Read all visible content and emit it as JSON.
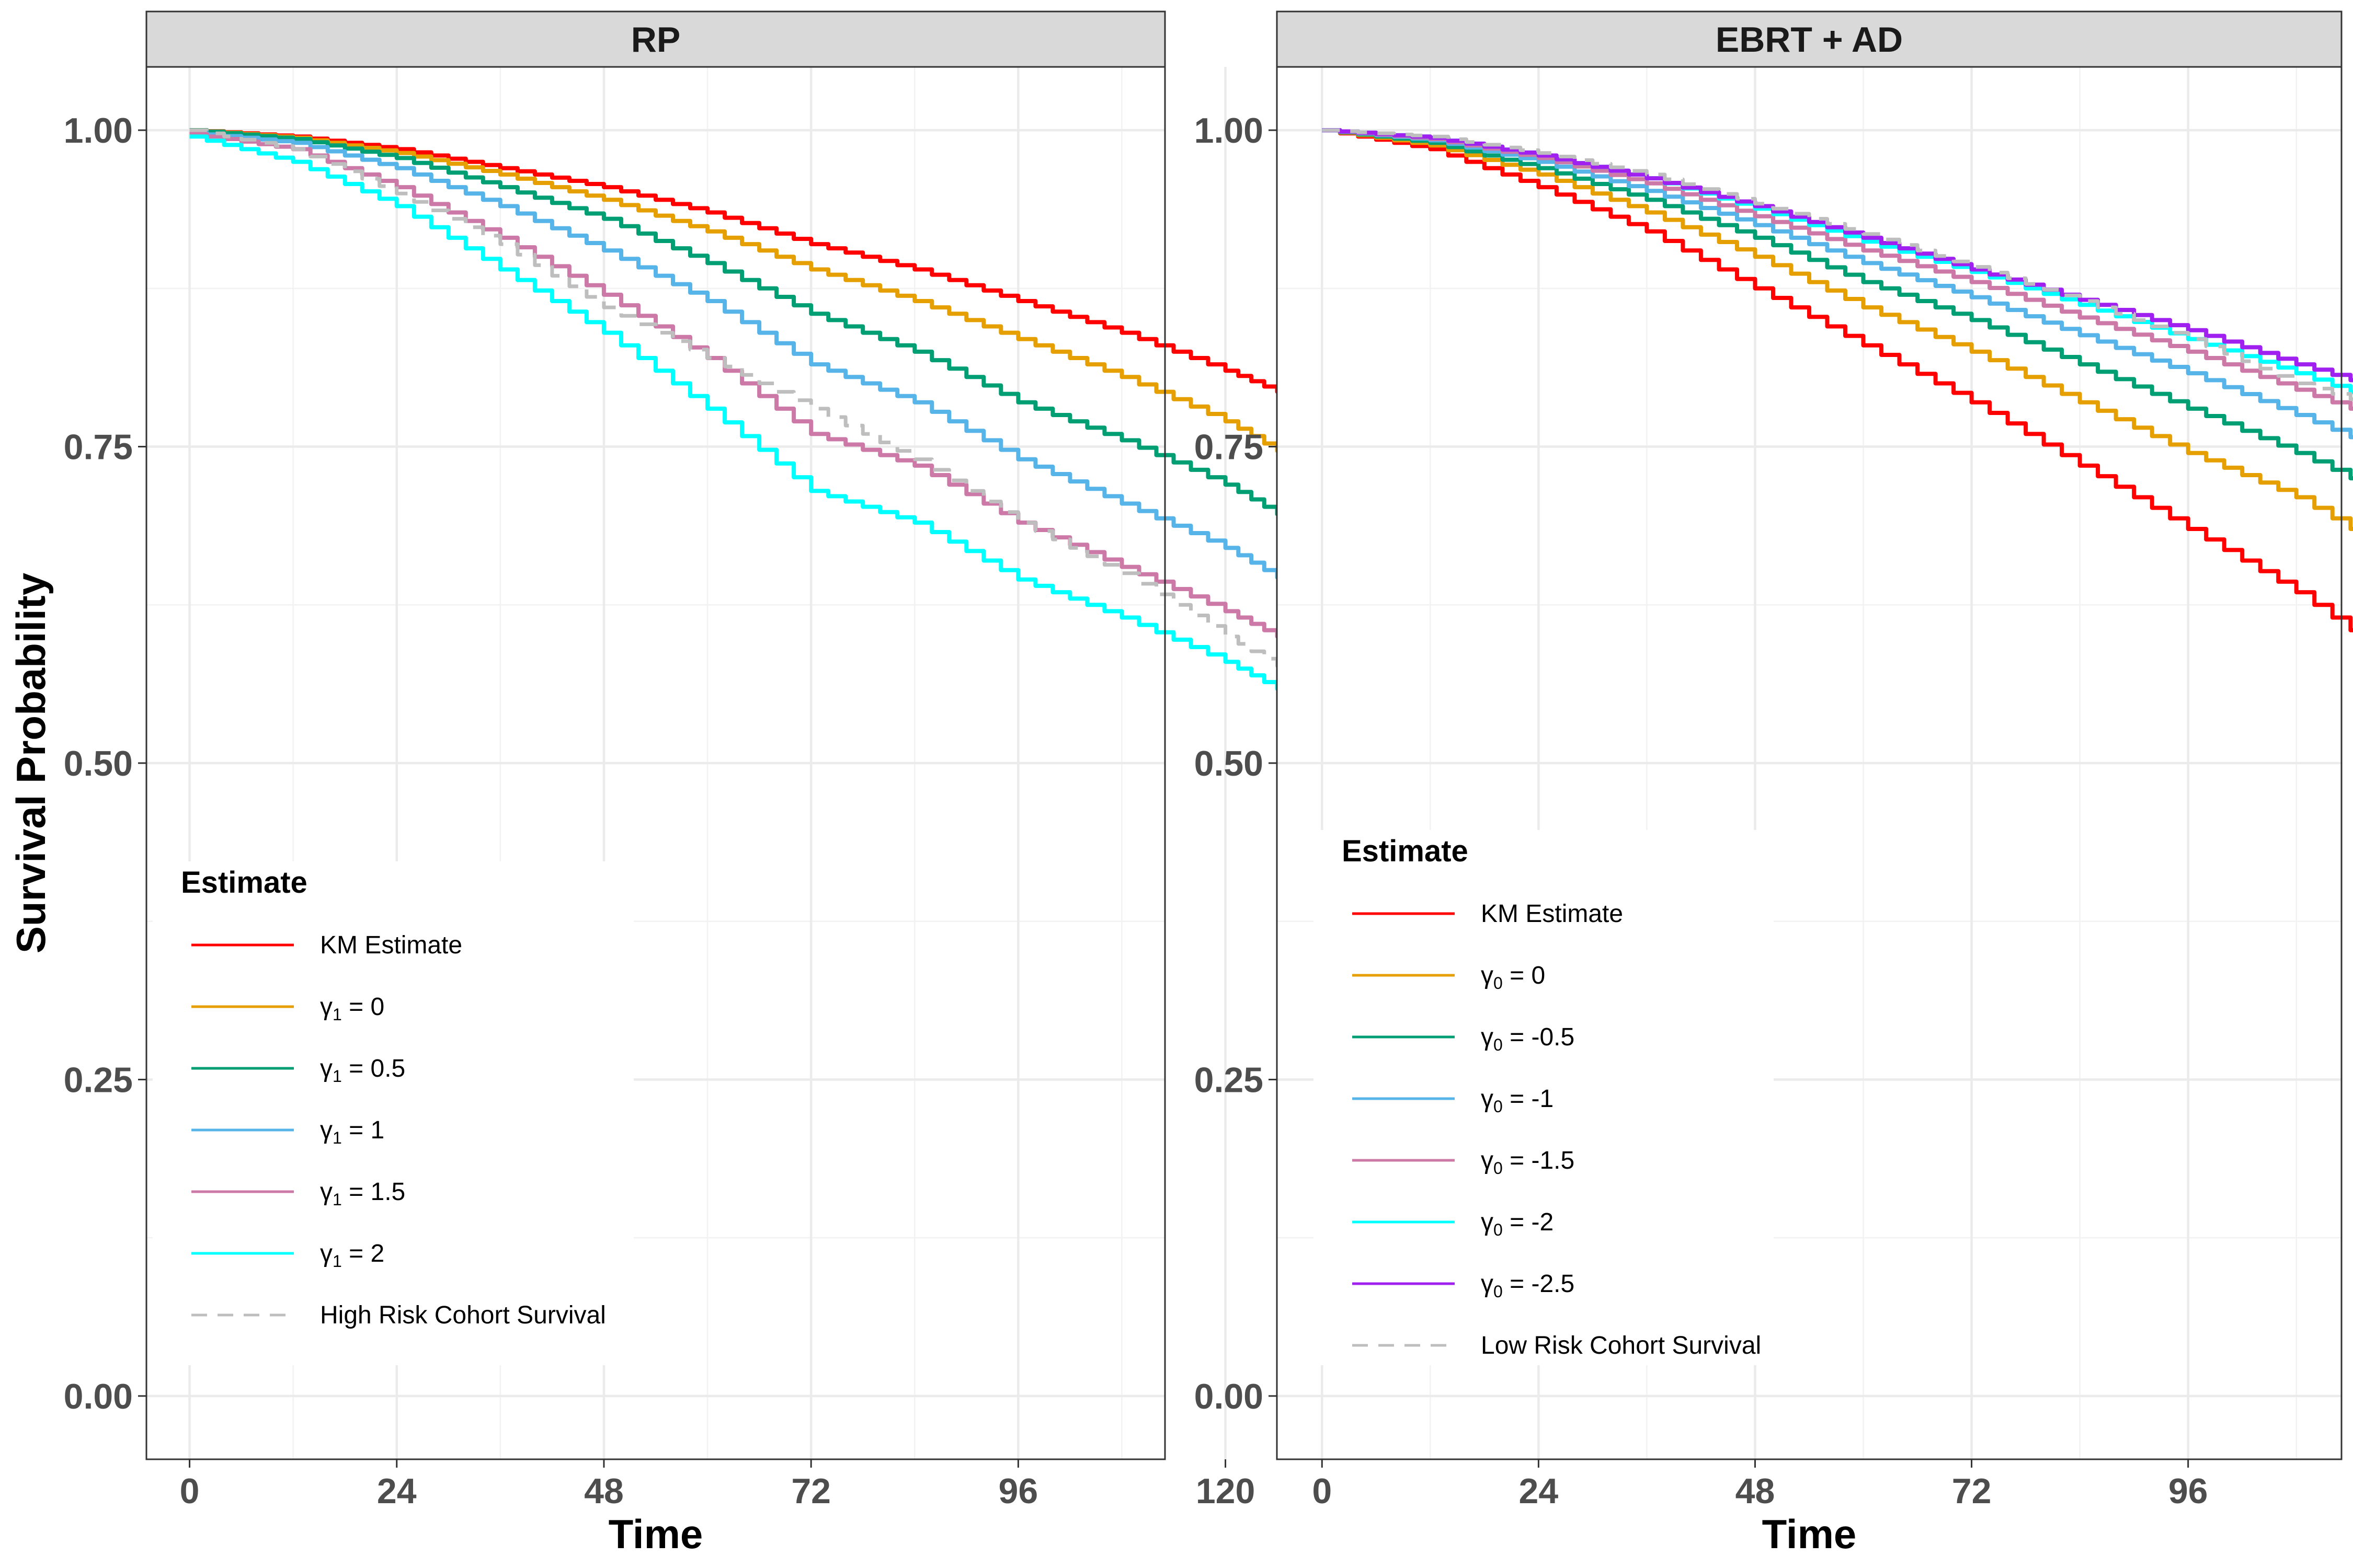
{
  "chart_data": [
    {
      "type": "line",
      "title": "RP",
      "xlabel": "Time",
      "ylabel": "Survival Probability",
      "xlim": [
        -5,
        113
      ],
      "ylim": [
        -0.05,
        1.05
      ],
      "x_ticks": [
        0,
        24,
        48,
        72,
        96,
        120
      ],
      "y_ticks": [
        0,
        0.25,
        0.5,
        0.75,
        1
      ],
      "x_tick_labels": [
        "0",
        "24",
        "48",
        "72",
        "96",
        "120"
      ],
      "y_tick_labels": [
        "0.00",
        "0.25",
        "0.50",
        "0.75",
        "1.00"
      ],
      "grid": true,
      "legend": {
        "title": "Estimate",
        "placement": "bottom-left",
        "entries": [
          {
            "label": "KM Estimate",
            "color": "#FF0000",
            "dash": "solid"
          },
          {
            "label": "γ1 = 0",
            "symbol": "γ",
            "sub": "1",
            "rest": " = 0",
            "color": "#E69F00",
            "dash": "solid"
          },
          {
            "label": "γ1 = 0.5",
            "symbol": "γ",
            "sub": "1",
            "rest": " = 0.5",
            "color": "#009E73",
            "dash": "solid"
          },
          {
            "label": "γ1 = 1",
            "symbol": "γ",
            "sub": "1",
            "rest": " = 1",
            "color": "#56B4E9",
            "dash": "solid"
          },
          {
            "label": "γ1 = 1.5",
            "symbol": "γ",
            "sub": "1",
            "rest": " = 1.5",
            "color": "#CC79A7",
            "dash": "solid"
          },
          {
            "label": "γ1 = 2",
            "symbol": "γ",
            "sub": "1",
            "rest": " = 2",
            "color": "#00FFFF",
            "dash": "solid"
          },
          {
            "label": "High Risk Cohort Survival",
            "color": "#BEBEBE",
            "dash": "dashed"
          }
        ]
      },
      "series": [
        {
          "name": "KM Estimate",
          "color": "#FF0000",
          "dash": "solid",
          "x": [
            0,
            12,
            24,
            36,
            48,
            60,
            72,
            84,
            96,
            108,
            120,
            129
          ],
          "y": [
            1.0,
            0.995,
            0.985,
            0.97,
            0.955,
            0.935,
            0.91,
            0.89,
            0.865,
            0.84,
            0.81,
            0.785
          ]
        },
        {
          "name": "γ1 = 0",
          "color": "#E69F00",
          "dash": "solid",
          "x": [
            0,
            12,
            24,
            36,
            48,
            60,
            72,
            84,
            96,
            108,
            120,
            129
          ],
          "y": [
            1.0,
            0.994,
            0.982,
            0.965,
            0.945,
            0.92,
            0.89,
            0.865,
            0.835,
            0.805,
            0.77,
            0.735
          ]
        },
        {
          "name": "γ1 = 0.5",
          "color": "#009E73",
          "dash": "solid",
          "x": [
            0,
            12,
            24,
            36,
            48,
            60,
            72,
            84,
            96,
            108,
            120,
            129
          ],
          "y": [
            1.0,
            0.993,
            0.978,
            0.955,
            0.93,
            0.895,
            0.855,
            0.825,
            0.785,
            0.755,
            0.72,
            0.685
          ]
        },
        {
          "name": "γ1 = 1",
          "color": "#56B4E9",
          "dash": "solid",
          "x": [
            0,
            12,
            24,
            36,
            48,
            60,
            72,
            84,
            96,
            108,
            120,
            129
          ],
          "y": [
            0.998,
            0.99,
            0.97,
            0.94,
            0.905,
            0.865,
            0.815,
            0.785,
            0.74,
            0.705,
            0.67,
            0.635
          ]
        },
        {
          "name": "γ1 = 1.5",
          "color": "#CC79A7",
          "dash": "solid",
          "x": [
            0,
            12,
            24,
            36,
            48,
            60,
            72,
            84,
            96,
            108,
            120,
            129
          ],
          "y": [
            0.997,
            0.985,
            0.955,
            0.915,
            0.87,
            0.82,
            0.76,
            0.735,
            0.69,
            0.655,
            0.62,
            0.59
          ]
        },
        {
          "name": "γ1 = 2",
          "color": "#00FFFF",
          "dash": "solid",
          "x": [
            0,
            12,
            24,
            36,
            48,
            60,
            72,
            84,
            96,
            108,
            120,
            129
          ],
          "y": [
            0.995,
            0.975,
            0.94,
            0.89,
            0.84,
            0.78,
            0.715,
            0.69,
            0.645,
            0.615,
            0.58,
            0.548
          ]
        },
        {
          "name": "High Risk Cohort Survival",
          "color": "#BEBEBE",
          "dash": "dashed",
          "x": [
            0,
            12,
            24,
            36,
            48,
            60,
            72,
            84,
            96,
            108,
            120,
            129
          ],
          "y": [
            1.0,
            0.985,
            0.95,
            0.91,
            0.86,
            0.82,
            0.78,
            0.74,
            0.69,
            0.65,
            0.6,
            0.565
          ]
        }
      ]
    },
    {
      "type": "line",
      "title": "EBRT + AD",
      "xlabel": "Time",
      "ylabel": "",
      "xlim": [
        -5,
        113
      ],
      "ylim": [
        -0.05,
        1.05
      ],
      "x_ticks": [
        0,
        24,
        48,
        72,
        96,
        120
      ],
      "y_ticks": [
        0,
        0.25,
        0.5,
        0.75,
        1
      ],
      "x_tick_labels": [
        "0",
        "24",
        "48",
        "72",
        "96",
        "120"
      ],
      "y_tick_labels": [
        "0.00",
        "0.25",
        "0.50",
        "0.75",
        "1.00"
      ],
      "grid": true,
      "legend": {
        "title": "Estimate",
        "placement": "bottom-left",
        "entries": [
          {
            "label": "KM Estimate",
            "color": "#FF0000",
            "dash": "solid"
          },
          {
            "label": "γ0 = 0",
            "symbol": "γ",
            "sub": "0",
            "rest": " = 0",
            "color": "#E69F00",
            "dash": "solid"
          },
          {
            "label": "γ0 = -0.5",
            "symbol": "γ",
            "sub": "0",
            "rest": " = -0.5",
            "color": "#009E73",
            "dash": "solid"
          },
          {
            "label": "γ0 = -1",
            "symbol": "γ",
            "sub": "0",
            "rest": " = -1",
            "color": "#56B4E9",
            "dash": "solid"
          },
          {
            "label": "γ0 = -1.5",
            "symbol": "γ",
            "sub": "0",
            "rest": " = -1.5",
            "color": "#CC79A7",
            "dash": "solid"
          },
          {
            "label": "γ0 = -2",
            "symbol": "γ",
            "sub": "0",
            "rest": " = -2",
            "color": "#00FFFF",
            "dash": "solid"
          },
          {
            "label": "γ0 = -2.5",
            "symbol": "γ",
            "sub": "0",
            "rest": " = -2.5",
            "color": "#A020F0",
            "dash": "solid"
          },
          {
            "label": "Low Risk Cohort Survival",
            "color": "#BEBEBE",
            "dash": "dashed"
          }
        ]
      },
      "series": [
        {
          "name": "KM Estimate",
          "color": "#FF0000",
          "dash": "solid",
          "x": [
            0,
            12,
            24,
            36,
            48,
            60,
            72,
            84,
            96,
            108,
            120,
            129
          ],
          "y": [
            1.0,
            0.985,
            0.955,
            0.92,
            0.875,
            0.83,
            0.785,
            0.735,
            0.685,
            0.635,
            0.575,
            0.52
          ]
        },
        {
          "name": "γ0 = 0",
          "color": "#E69F00",
          "dash": "solid",
          "x": [
            0,
            12,
            24,
            36,
            48,
            60,
            72,
            84,
            96,
            108,
            120,
            129
          ],
          "y": [
            1.0,
            0.988,
            0.965,
            0.935,
            0.9,
            0.86,
            0.825,
            0.785,
            0.745,
            0.71,
            0.66,
            0.59
          ]
        },
        {
          "name": "γ0 = -0.5",
          "color": "#009E73",
          "dash": "solid",
          "x": [
            0,
            12,
            24,
            36,
            48,
            60,
            72,
            84,
            96,
            108,
            120,
            129
          ],
          "y": [
            1.0,
            0.99,
            0.97,
            0.945,
            0.915,
            0.88,
            0.85,
            0.815,
            0.78,
            0.745,
            0.705,
            0.65
          ]
        },
        {
          "name": "γ0 = -1",
          "color": "#56B4E9",
          "dash": "solid",
          "x": [
            0,
            12,
            24,
            36,
            48,
            60,
            72,
            84,
            96,
            108,
            120,
            129
          ],
          "y": [
            1.0,
            0.992,
            0.975,
            0.952,
            0.925,
            0.895,
            0.868,
            0.838,
            0.808,
            0.775,
            0.74,
            0.695
          ]
        },
        {
          "name": "γ0 = -1.5",
          "color": "#CC79A7",
          "dash": "solid",
          "x": [
            0,
            12,
            24,
            36,
            48,
            60,
            72,
            84,
            96,
            108,
            120,
            129
          ],
          "y": [
            1.0,
            0.993,
            0.978,
            0.958,
            0.932,
            0.905,
            0.88,
            0.852,
            0.825,
            0.795,
            0.765,
            0.728
          ]
        },
        {
          "name": "γ0 = -2",
          "color": "#00FFFF",
          "dash": "solid",
          "x": [
            0,
            12,
            24,
            36,
            48,
            60,
            72,
            84,
            96,
            108,
            120,
            129
          ],
          "y": [
            1.0,
            0.994,
            0.98,
            0.962,
            0.938,
            0.912,
            0.888,
            0.862,
            0.835,
            0.808,
            0.778,
            0.748
          ]
        },
        {
          "name": "γ0 = -2.5",
          "color": "#A020F0",
          "dash": "solid",
          "x": [
            0,
            12,
            24,
            36,
            48,
            60,
            72,
            84,
            96,
            108,
            120,
            129
          ],
          "y": [
            1.0,
            0.994,
            0.98,
            0.962,
            0.94,
            0.915,
            0.89,
            0.866,
            0.842,
            0.815,
            0.79,
            0.765
          ]
        },
        {
          "name": "Low Risk Cohort Survival",
          "color": "#BEBEBE",
          "dash": "dashed",
          "x": [
            0,
            12,
            24,
            36,
            48,
            60,
            72,
            84,
            96,
            108,
            120,
            129
          ],
          "y": [
            1.0,
            0.995,
            0.982,
            0.965,
            0.942,
            0.918,
            0.892,
            0.865,
            0.835,
            0.8,
            0.775,
            0.745
          ]
        }
      ]
    }
  ]
}
